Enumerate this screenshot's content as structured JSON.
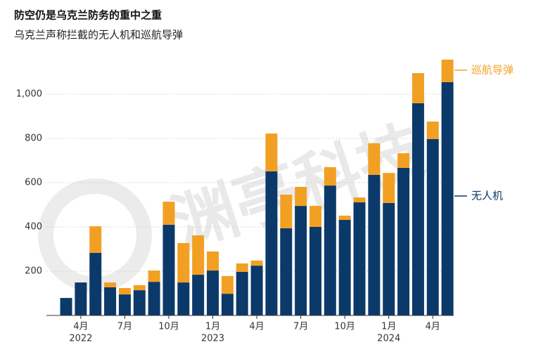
{
  "chart_data": {
    "type": "stacked_bar",
    "title": "防空仍是乌克兰防务的重中之重",
    "subtitle": "乌克兰声称拦截的无人机和巡航导弹",
    "watermark": "渊亭科技",
    "categories": [
      null,
      "4月",
      null,
      null,
      "7月",
      null,
      null,
      "10月",
      null,
      null,
      "1月",
      null,
      null,
      "4月",
      null,
      null,
      "7月",
      null,
      null,
      "10月",
      null,
      null,
      "1月",
      null,
      null,
      "4月",
      null
    ],
    "category_years": [
      null,
      "2022",
      null,
      null,
      null,
      null,
      null,
      null,
      null,
      null,
      "2023",
      null,
      null,
      null,
      null,
      null,
      null,
      null,
      null,
      null,
      null,
      null,
      "2024",
      null,
      null,
      null,
      null
    ],
    "series": [
      {
        "name": "无人机",
        "color": "#0b3a6a",
        "values": [
          79,
          149,
          283,
          127,
          95,
          114,
          152,
          410,
          149,
          184,
          203,
          98,
          197,
          225,
          651,
          394,
          495,
          400,
          587,
          432,
          511,
          635,
          508,
          667,
          959,
          797,
          1054
        ]
      },
      {
        "name": "巡航导弹",
        "color": "#f2a024",
        "values": [
          0,
          0,
          120,
          22,
          29,
          23,
          51,
          104,
          178,
          178,
          86,
          80,
          38,
          23,
          171,
          152,
          86,
          95,
          83,
          19,
          22,
          143,
          136,
          66,
          136,
          79,
          102
        ]
      }
    ],
    "ylim": [
      0,
      1160
    ],
    "yticks": [
      200,
      400,
      600,
      800,
      {
        "value": 1000,
        "label": "1,000"
      }
    ],
    "grid": true
  }
}
